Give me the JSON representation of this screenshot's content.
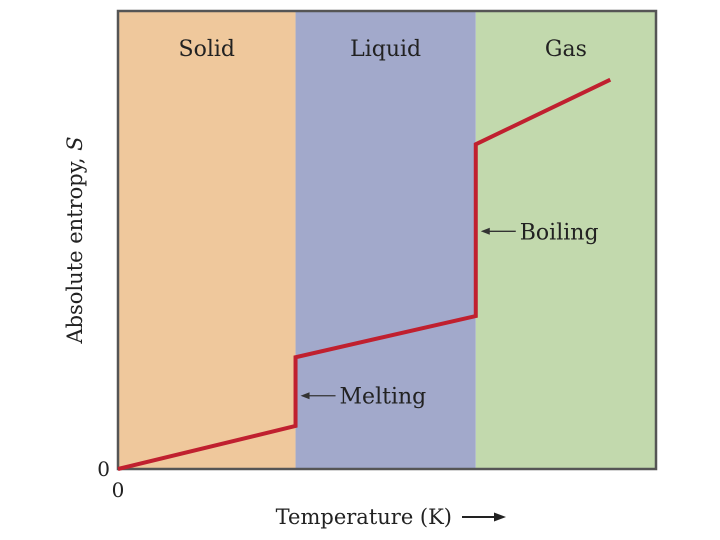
{
  "chart_data": {
    "type": "line",
    "title": "",
    "xlabel": "Temperature (K)",
    "ylabel_main": "Absolute entropy, ",
    "ylabel_symbol": "S",
    "x_origin_label": "0",
    "y_origin_label": "0",
    "xlim": [
      0,
      100
    ],
    "ylim": [
      0,
      100
    ],
    "regions": [
      {
        "name": "Solid",
        "x_start": 0,
        "x_end": 33,
        "color": "#efc89c"
      },
      {
        "name": "Liquid",
        "x_start": 33,
        "x_end": 66.5,
        "color": "#a2a9cb"
      },
      {
        "name": "Gas",
        "x_start": 66.5,
        "x_end": 100,
        "color": "#c2d9ad"
      }
    ],
    "series": [
      {
        "color": "#c0202f",
        "points": [
          [
            0,
            0
          ],
          [
            33,
            9.4
          ],
          [
            33,
            24.4
          ],
          [
            66.5,
            33.4
          ],
          [
            66.5,
            70.9
          ],
          [
            91.5,
            85
          ]
        ]
      }
    ],
    "annotations": [
      {
        "id": "melting",
        "text": "Melting",
        "x": 33,
        "y": 16
      },
      {
        "id": "boiling",
        "text": "Boiling",
        "x": 66.5,
        "y": 51.9
      }
    ],
    "grid": false,
    "frame_color": "#555555"
  }
}
